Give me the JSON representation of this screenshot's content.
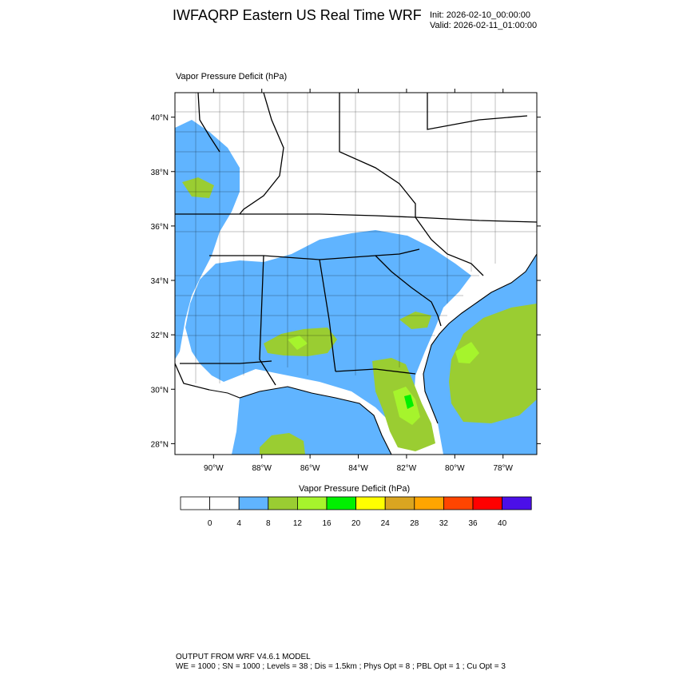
{
  "header": {
    "title": "IWFAQRP Eastern US Real Time WRF",
    "init": "Init: 2026-02-10_00:00:00",
    "valid": "Valid: 2026-02-11_01:00:00"
  },
  "panel": {
    "field_label": "Vapor Pressure Deficit   (hPa)"
  },
  "map": {
    "lat_ticks": [
      "40°N",
      "38°N",
      "36°N",
      "34°N",
      "32°N",
      "30°N",
      "28°N"
    ],
    "lon_ticks": [
      "90°W",
      "88°W",
      "86°W",
      "84°W",
      "82°W",
      "80°W",
      "78°W"
    ],
    "lon_range": [
      -91.6,
      -76.6
    ],
    "lat_range": [
      27.6,
      40.9
    ],
    "land_base_color": "#ffffff",
    "boundary_color": "#000000"
  },
  "colorbar": {
    "title": "Vapor Pressure Deficit  (hPa)",
    "levels": [
      "0",
      "4",
      "8",
      "12",
      "16",
      "20",
      "24",
      "28",
      "32",
      "36",
      "40"
    ],
    "colors": [
      "#ffffff",
      "#ffffff",
      "#60b4ff",
      "#9acd32",
      "#a6f42c",
      "#00f000",
      "#ffff00",
      "#daa520",
      "#ffa500",
      "#ff4500",
      "#ff0000",
      "#4b0fe8"
    ]
  },
  "footer": {
    "line1": "OUTPUT FROM WRF V4.6.1 MODEL",
    "line2": "WE = 1000 ; SN = 1000 ; Levels = 38 ; Dis = 1.5km ; Phys Opt = 8 ; PBL Opt = 1 ; Cu Opt = 3"
  }
}
